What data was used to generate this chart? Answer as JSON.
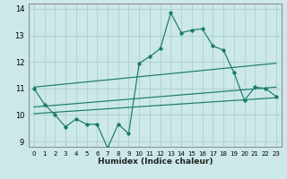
{
  "xlabel": "Humidex (Indice chaleur)",
  "ylabel": "",
  "bg_color": "#cce8e8",
  "grid_color": "#aacfcf",
  "line_color": "#1a7a6a",
  "xlim": [
    -0.5,
    23.5
  ],
  "ylim": [
    8.8,
    14.2
  ],
  "yticks": [
    9,
    10,
    11,
    12,
    13,
    14
  ],
  "xticks": [
    0,
    1,
    2,
    3,
    4,
    5,
    6,
    7,
    8,
    9,
    10,
    11,
    12,
    13,
    14,
    15,
    16,
    17,
    18,
    19,
    20,
    21,
    22,
    23
  ],
  "main_line_x": [
    0,
    1,
    2,
    3,
    4,
    5,
    6,
    7,
    8,
    9,
    10,
    11,
    12,
    13,
    14,
    15,
    16,
    17,
    18,
    19,
    20,
    21,
    22,
    23
  ],
  "main_line_y": [
    11.0,
    10.4,
    10.0,
    9.55,
    9.85,
    9.65,
    9.65,
    8.75,
    9.65,
    9.3,
    11.95,
    12.2,
    12.5,
    13.85,
    13.1,
    13.2,
    13.25,
    12.6,
    12.45,
    11.6,
    10.55,
    11.05,
    11.0,
    10.7
  ],
  "upper_line_x": [
    0,
    23
  ],
  "upper_line_y": [
    11.05,
    11.95
  ],
  "mid_line_x": [
    0,
    23
  ],
  "mid_line_y": [
    10.3,
    11.05
  ],
  "lower_line_x": [
    0,
    23
  ],
  "lower_line_y": [
    10.05,
    10.65
  ]
}
